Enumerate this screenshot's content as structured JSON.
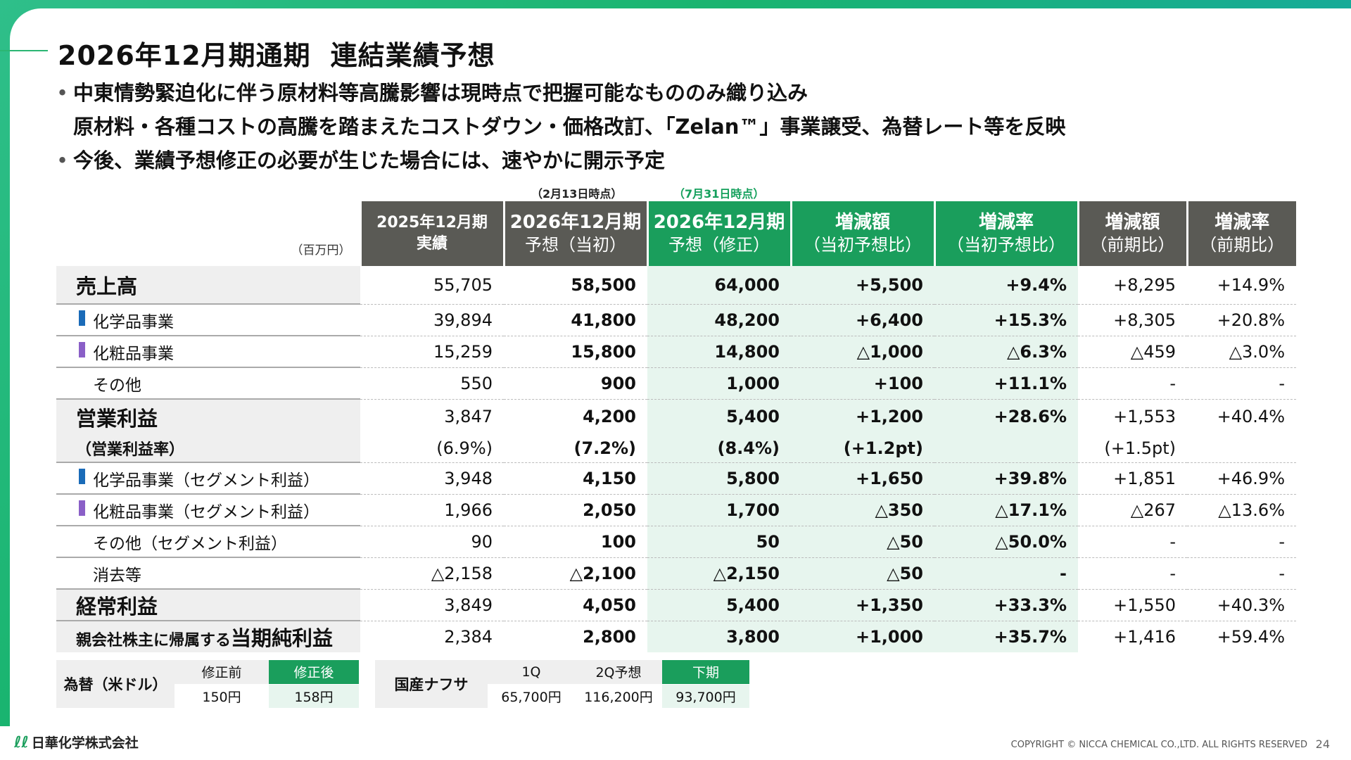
{
  "title": {
    "period": "2026年12月期通期",
    "subject": "連結業績予想"
  },
  "bullets": [
    "中東情勢緊迫化に伴う原材料等高騰影響は現時点で把握可能なもののみ織り込み",
    "原材料・各種コストの高騰を踏まえたコストダウン・価格改訂、「Zelan™」事業譲受、為替レート等を反映",
    "今後、業績予想修正の必要が生じた場合には、速やかに開示予定"
  ],
  "bullet_marker": "•",
  "notes": {
    "original_date": "（2月13日時点）",
    "revised_date": "（7月31日時点）"
  },
  "unit": "（百万円）",
  "headers": {
    "actual": [
      "2025年12月期",
      "実績"
    ],
    "plan": [
      "2026年12月期",
      "予想（当初）"
    ],
    "revised": [
      "2026年12月期",
      "予想（修正）"
    ],
    "diff_plan": [
      "増減額",
      "（当初予想比）"
    ],
    "rate_plan": [
      "増減率",
      "（当初予想比）"
    ],
    "diff_prev": [
      "増減額",
      "（前期比）"
    ],
    "rate_prev": [
      "増減率",
      "（前期比）"
    ]
  },
  "rows": [
    {
      "label": "売上高",
      "values": [
        "55,705",
        "58,500",
        "64,000",
        "+5,500",
        "+9.4%",
        "+8,295",
        "+14.9%"
      ]
    },
    {
      "label": "化学品事業",
      "values": [
        "39,894",
        "41,800",
        "48,200",
        "+6,400",
        "+15.3%",
        "+8,305",
        "+20.8%"
      ]
    },
    {
      "label": "化粧品事業",
      "values": [
        "15,259",
        "15,800",
        "14,800",
        "△1,000",
        "△6.3%",
        "△459",
        "△3.0%"
      ]
    },
    {
      "label": "その他",
      "values": [
        "550",
        "900",
        "1,000",
        "+100",
        "+11.1%",
        "-",
        "-"
      ]
    },
    {
      "label": "営業利益",
      "values": [
        "3,847",
        "4,200",
        "5,400",
        "+1,200",
        "+28.6%",
        "+1,553",
        "+40.4%"
      ]
    },
    {
      "label": "（営業利益率）",
      "values": [
        "(6.9%)",
        "(7.2%)",
        "(8.4%)",
        "(+1.2pt)",
        "",
        "(+1.5pt)",
        ""
      ]
    },
    {
      "label": "化学品事業（セグメント利益）",
      "values": [
        "3,948",
        "4,150",
        "5,800",
        "+1,650",
        "+39.8%",
        "+1,851",
        "+46.9%"
      ]
    },
    {
      "label": "化粧品事業（セグメント利益）",
      "values": [
        "1,966",
        "2,050",
        "1,700",
        "△350",
        "△17.1%",
        "△267",
        "△13.6%"
      ]
    },
    {
      "label": "その他（セグメント利益）",
      "values": [
        "90",
        "100",
        "50",
        "△50",
        "△50.0%",
        "-",
        "-"
      ]
    },
    {
      "label": "消去等",
      "values": [
        "△2,158",
        "△2,100",
        "△2,150",
        "△50",
        "-",
        "-",
        "-"
      ]
    },
    {
      "label": "経常利益",
      "values": [
        "3,849",
        "4,050",
        "5,400",
        "+1,350",
        "+33.3%",
        "+1,550",
        "+40.3%"
      ]
    },
    {
      "label_prefix": "親会社株主に帰属する",
      "label": "当期純利益",
      "values": [
        "2,384",
        "2,800",
        "3,800",
        "+1,000",
        "+35.7%",
        "+1,416",
        "+59.4%"
      ]
    }
  ],
  "fx": {
    "label": "為替（米ドル）",
    "heads": [
      "修正前",
      "修正後"
    ],
    "values": [
      "150円",
      "158円"
    ]
  },
  "naphtha": {
    "label": "国産ナフサ",
    "heads": [
      "1Q",
      "2Q予想",
      "下期"
    ],
    "values": [
      "65,700円",
      "116,200円",
      "93,700円"
    ]
  },
  "footer": {
    "logo": "日華化学株式会社",
    "copyright": "COPYRIGHT © NICCA CHEMICAL CO.,LTD. ALL RIGHTS RESERVED",
    "page": "24"
  },
  "colors": {
    "accent_green": "#1a9e5c",
    "header_gray": "#5a5a55",
    "chemical_bar": "#1a6bb8",
    "cosmetics_bar": "#8a5fc7"
  }
}
